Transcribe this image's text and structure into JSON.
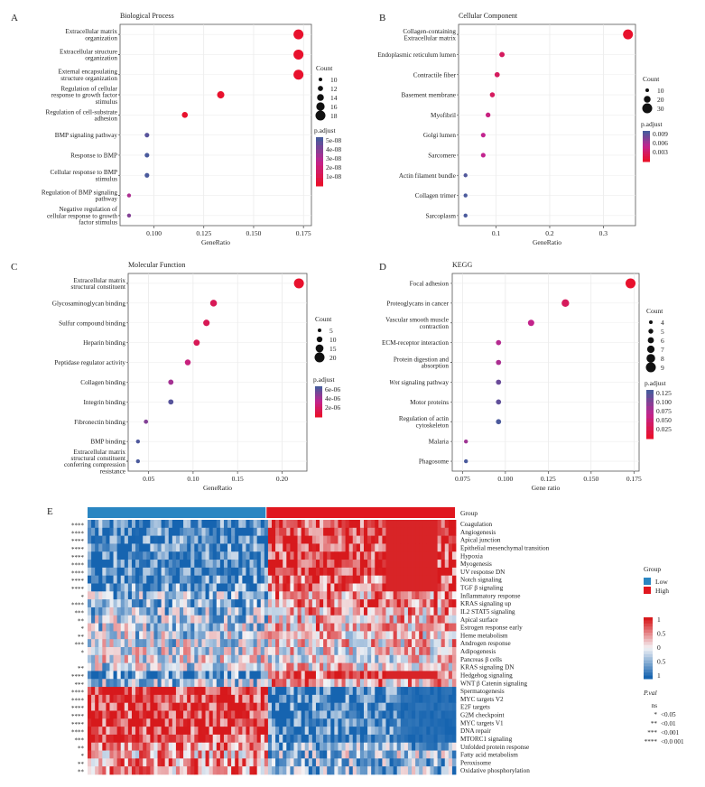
{
  "colors": {
    "low": "#2a86c2",
    "high": "#e0171f",
    "mid": "#ffffff",
    "deep_blue": "#1664b0",
    "deep_red": "#d7191c",
    "padj_low": "#4a5a9c",
    "padj_high": "#e8112d"
  },
  "chart_data": [
    {
      "panel": "A",
      "type": "scatter",
      "title": "Biological Process",
      "xlabel": "GeneRatio",
      "xlim": [
        0.083,
        0.179
      ],
      "xticks": [
        "0.100",
        "0.125",
        "0.150",
        "0.175"
      ],
      "xtick_values": [
        0.1,
        0.125,
        0.15,
        0.175
      ],
      "categories": [
        "Extracellular matrix organization",
        "Extracellular structure organization",
        "External encapsulating structure organization",
        "Regulation of cellular response to growth factor stimulus",
        "Regulation of cell-substrate adhesion",
        "BMP signaling pathway",
        "Response to BMP",
        "Cellular response to BMP stimulus",
        "Regulation of BMP signaling pathway",
        "Negative regulation of cellular response to growth factor stimulus"
      ],
      "labels": [
        [
          "Extracellular matrix",
          "organization"
        ],
        [
          "Extracellular structure",
          "organization"
        ],
        [
          "External encapsulating",
          "structure organization"
        ],
        [
          "Regulation of cellular",
          "response to growth factor",
          "stimulus"
        ],
        [
          "Regulation of cell-substrate",
          "adhesion"
        ],
        [
          "BMP signaling pathway"
        ],
        [
          "Response to BMP"
        ],
        [
          "Cellular response to BMP",
          "stimulus"
        ],
        [
          "Regulation of BMP signaling",
          "pathway"
        ],
        [
          "Negative regulation of",
          "cellular response to growth",
          "factor stimulus"
        ]
      ],
      "gene_ratio": [
        0.1725,
        0.1725,
        0.1725,
        0.1335,
        0.1155,
        0.0965,
        0.0965,
        0.0965,
        0.0875,
        0.0875
      ],
      "count": [
        18,
        18,
        18,
        14,
        12,
        10,
        10,
        10,
        9,
        9
      ],
      "p_adjust": [
        1e-09,
        1e-09,
        1e-09,
        1e-09,
        1e-09,
        4e-08,
        5e-08,
        5e-08,
        1e-08,
        2e-08
      ],
      "size_legend": {
        "title": "Count",
        "labels": [
          "10",
          "12",
          "14",
          "16",
          "18"
        ]
      },
      "color_legend": {
        "title": "p.adjust",
        "labels": [
          "5e-08",
          "4e-08",
          "3e-08",
          "2e-08",
          "1e-08"
        ]
      }
    },
    {
      "panel": "B",
      "type": "scatter",
      "title": "Cellular Component",
      "xlabel": "GeneRatio",
      "xlim": [
        0.03,
        0.36
      ],
      "xticks": [
        "0.1",
        "0.2",
        "0.3"
      ],
      "xtick_values": [
        0.1,
        0.2,
        0.3
      ],
      "categories": [
        "Collagen-containing Extracellular matrix",
        "Endoplasmic reticulum lumen",
        "Contractile fiber",
        "Basement membrane",
        "Myofibril",
        "Golgi lumen",
        "Sarcomere",
        "Actin filament bundle",
        "Collagen trimer",
        "Sarcoplasm"
      ],
      "labels": [
        [
          "Collagen-containing",
          "Extracellular matrix"
        ],
        [
          "Endoplasmic reticulum lumen"
        ],
        [
          "Contractile fiber"
        ],
        [
          "Basement membrane"
        ],
        [
          "Myofibril"
        ],
        [
          "Golgi lumen"
        ],
        [
          "Sarcomere"
        ],
        [
          "Actin filament bundle"
        ],
        [
          "Collagen trimer"
        ],
        [
          "Sarcoplasm"
        ]
      ],
      "gene_ratio": [
        0.346,
        0.111,
        0.102,
        0.093,
        0.085,
        0.076,
        0.076,
        0.043,
        0.043,
        0.043
      ],
      "count": [
        40,
        13,
        12,
        11,
        10,
        9,
        9,
        5,
        5,
        5
      ],
      "p_adjust": [
        1e-06,
        1e-05,
        1e-05,
        1e-05,
        5e-05,
        0.0001,
        0.0001,
        0.0075,
        0.0095,
        0.0098
      ],
      "size_legend": {
        "title": "Count",
        "labels": [
          "10",
          "20",
          "30"
        ]
      },
      "color_legend": {
        "title": "p.adjust",
        "labels": [
          "0.009",
          "0.006",
          "0.003"
        ]
      }
    },
    {
      "panel": "C",
      "type": "scatter",
      "title": "Molecular Function",
      "xlabel": "GeneRatio",
      "xlim": [
        0.027,
        0.228
      ],
      "xticks": [
        "0.05",
        "0.10",
        "0.15",
        "0.20"
      ],
      "xtick_values": [
        0.05,
        0.1,
        0.15,
        0.2
      ],
      "categories": [
        "Extracellular matrix structural constituent",
        "Glycosaminoglycan binding",
        "Sulfur compound binding",
        "Heparin binding",
        "Peptidase regulator activity",
        "Collagen binding",
        "Integrin binding",
        "Fibronectin binding",
        "BMP binding",
        "Extracellular matrix structural constituent conferring compression resistance"
      ],
      "labels": [
        [
          "Extracellular matrix",
          "structural constituent"
        ],
        [
          "Glycosaminoglycan binding"
        ],
        [
          "Sulfur compound binding"
        ],
        [
          "Heparin binding"
        ],
        [
          "Peptidase regulator activity"
        ],
        [
          "Collagen binding"
        ],
        [
          "Integrin binding"
        ],
        [
          "Fibronectin binding"
        ],
        [
          "BMP binding"
        ],
        [
          "Extracellular matrix",
          "structural constituent",
          "conferring compression",
          "resistance"
        ]
      ],
      "gene_ratio": [
        0.219,
        0.123,
        0.115,
        0.104,
        0.094,
        0.075,
        0.075,
        0.047,
        0.038,
        0.038
      ],
      "count": [
        23,
        13,
        12,
        11,
        10,
        8,
        8,
        5,
        4,
        4
      ],
      "p_adjust": [
        1e-10,
        1e-09,
        1e-09,
        1e-09,
        1e-08,
        1e-07,
        3.5e-06,
        5e-07,
        5.5e-06,
        6.5e-06
      ],
      "size_legend": {
        "title": "Count",
        "labels": [
          "5",
          "10",
          "15",
          "20"
        ]
      },
      "color_legend": {
        "title": "p.adjust",
        "labels": [
          "6e-06",
          "4e-06",
          "2e-06"
        ]
      }
    },
    {
      "panel": "D",
      "type": "scatter",
      "title": "KEGG",
      "xlabel": "Gene ratio",
      "xlim": [
        0.069,
        0.178
      ],
      "xticks": [
        "0.075",
        "0.100",
        "0.125",
        "0.150",
        "0.175"
      ],
      "xtick_values": [
        0.075,
        0.1,
        0.125,
        0.15,
        0.175
      ],
      "categories": [
        "Focal adhesion",
        "Proteoglycans in cancer",
        "Vascular smooth muscle contraction",
        "ECM-receptor interaction",
        "Protein digestion and absorption",
        "Wnt signaling pathway",
        "Motor proteins",
        "Regulation of actin cytoskeleton",
        "Malaria",
        "Phagosome"
      ],
      "labels": [
        [
          "Focal adhesion"
        ],
        [
          "Proteoglycans in cancer"
        ],
        [
          "Vascular smooth muscle",
          "contraction"
        ],
        [
          "ECM-receptor interaction"
        ],
        [
          "Protein digestion and",
          "absorption"
        ],
        [
          "Wnt signaling pathway"
        ],
        [
          "Motor proteins"
        ],
        [
          "Regulation of actin",
          "cytoskeleton"
        ],
        [
          "Malaria"
        ],
        [
          "Phagosome"
        ]
      ],
      "italic_first_word": [
        false,
        false,
        false,
        false,
        false,
        true,
        false,
        false,
        false,
        false
      ],
      "gene_ratio": [
        0.173,
        0.135,
        0.115,
        0.096,
        0.096,
        0.096,
        0.096,
        0.096,
        0.077,
        0.077
      ],
      "count": [
        9,
        7,
        6,
        5,
        5,
        5,
        5,
        5,
        4,
        4
      ],
      "p_adjust": [
        1e-05,
        0.0001,
        0.001,
        0.002,
        0.003,
        0.04,
        0.06,
        0.14,
        0.005,
        0.145
      ],
      "size_legend": {
        "title": "Count",
        "labels": [
          "4",
          "5",
          "6",
          "7",
          "8",
          "9"
        ]
      },
      "color_legend": {
        "title": "p.adjust",
        "labels": [
          "0.125",
          "0.100",
          "0.075",
          "0.050",
          "0.025"
        ]
      }
    },
    {
      "panel": "E",
      "type": "heatmap",
      "group_label": "Group",
      "groups": [
        {
          "name": "Low",
          "color": "#2a86c2",
          "fraction": 0.486
        },
        {
          "name": "High",
          "color": "#e0171f",
          "fraction": 0.514
        }
      ],
      "pathways": [
        "Coagulation",
        "Angiogenesis",
        "Apical junction",
        "Epithelial mesenchymal transition",
        "Hypoxia",
        "Myogenesis",
        "UV response DN",
        "Notch signaling",
        "TGF β signaling",
        "Inflammatory response",
        "KRAS signaling up",
        "IL2 STAT5 signaling",
        "Apical surface",
        "Estrogen response early",
        "Heme metabolism",
        "Androgen response",
        "Adipogenesis",
        "Pancreas β cells",
        "KRAS signaling DN",
        "Hedgehog signaling",
        "WNT β Catenin signaling",
        "Spermatogenesis",
        "MYC targets V2",
        "E2F targets",
        "G2M checkpoint",
        "MYC targets V1",
        "DNA repair",
        "MTORC1 signaling",
        "Unfolded protein response",
        "Fatty acid metabolism",
        "Peroxisome",
        "Oxidative phosphorylation"
      ],
      "significance": [
        "****",
        "****",
        "****",
        "****",
        "****",
        "****",
        "****",
        "****",
        "****",
        "*",
        "****",
        "***",
        "**",
        "*",
        "**",
        "***",
        "*",
        "",
        "**",
        "****",
        "***",
        "****",
        "****",
        "****",
        "****",
        "****",
        "****",
        "***",
        "**",
        "*",
        "**",
        "**"
      ],
      "direction": [
        1,
        1,
        1,
        1,
        1,
        1,
        1,
        0.8,
        0.8,
        0.5,
        0.6,
        0.45,
        0.3,
        0.35,
        0.25,
        0.2,
        0.1,
        0.05,
        0.2,
        0.8,
        0.35,
        -1,
        -1,
        -1,
        -1,
        -1,
        -1,
        -0.9,
        -0.6,
        -0.4,
        -0.5,
        -0.5
      ],
      "n_samples": 100,
      "scale_legend": {
        "labels": [
          "1",
          "0.5",
          "0",
          "0.5",
          "1"
        ]
      },
      "pval_legend": {
        "title": "P.val",
        "items": [
          [
            "ns",
            ""
          ],
          [
            "*",
            "<0.05"
          ],
          [
            "**",
            "<0.01"
          ],
          [
            "***",
            "<0.001"
          ],
          [
            "****",
            "<0.0 001"
          ]
        ]
      }
    }
  ]
}
